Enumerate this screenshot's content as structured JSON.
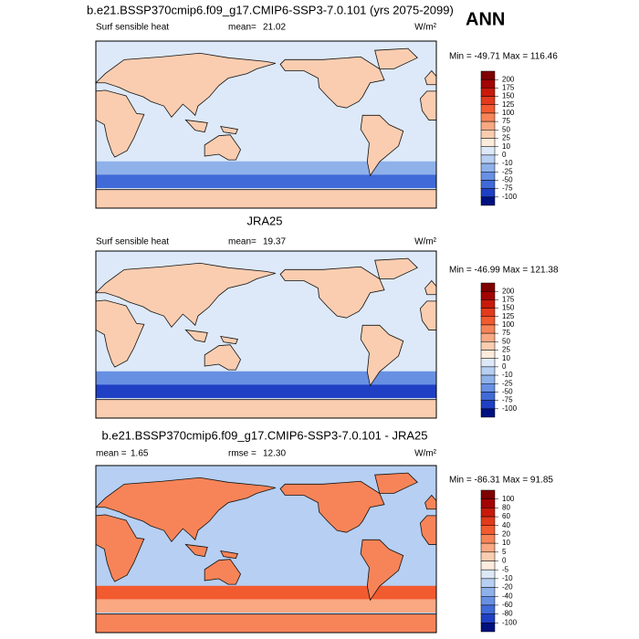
{
  "header": {
    "title": "b.e21.BSSP370cmip6.f09_g17.CMIP6-SSP3-7.0.101 (yrs 2075-2099)",
    "season": "ANN"
  },
  "palette": [
    "#7f0000",
    "#a30404",
    "#c81a0a",
    "#e23a1c",
    "#f25a30",
    "#f78458",
    "#f9a882",
    "#fbcdb0",
    "#fdebdc",
    "#dde9f8",
    "#b6cff2",
    "#8fb1ea",
    "#6890e2",
    "#406ad8",
    "#1f3fc4",
    "#00107f"
  ],
  "panels": [
    {
      "variable": "Surf sensible heat",
      "stats": [
        {
          "label": "mean=",
          "value": "21.02"
        }
      ],
      "units": "W/m²",
      "range_text": "Min = -49.71 Max = 116.46",
      "levels": [
        200,
        175,
        150,
        125,
        100,
        75,
        50,
        25,
        10,
        0,
        -10,
        -25,
        -50,
        -75,
        -100
      ]
    },
    {
      "title": "JRA25",
      "variable": "Surf sensible heat",
      "stats": [
        {
          "label": "mean=",
          "value": "19.37"
        }
      ],
      "units": "W/m²",
      "range_text": "Min = -46.99 Max = 121.38",
      "levels": [
        200,
        175,
        150,
        125,
        100,
        75,
        50,
        25,
        10,
        0,
        -10,
        -25,
        -50,
        -75,
        -100
      ]
    },
    {
      "title": "b.e21.BSSP370cmip6.f09_g17.CMIP6-SSP3-7.0.101 - JRA25",
      "stats": [
        {
          "label": "mean =",
          "value": "1.65"
        },
        {
          "label": "rmse =",
          "value": "12.30"
        }
      ],
      "units": "W/m²",
      "range_text": "Min = -86.31 Max = 91.85",
      "levels": [
        100,
        80,
        60,
        40,
        20,
        10,
        5,
        0,
        -5,
        -10,
        -20,
        -40,
        -60,
        -80,
        -100
      ]
    }
  ]
}
